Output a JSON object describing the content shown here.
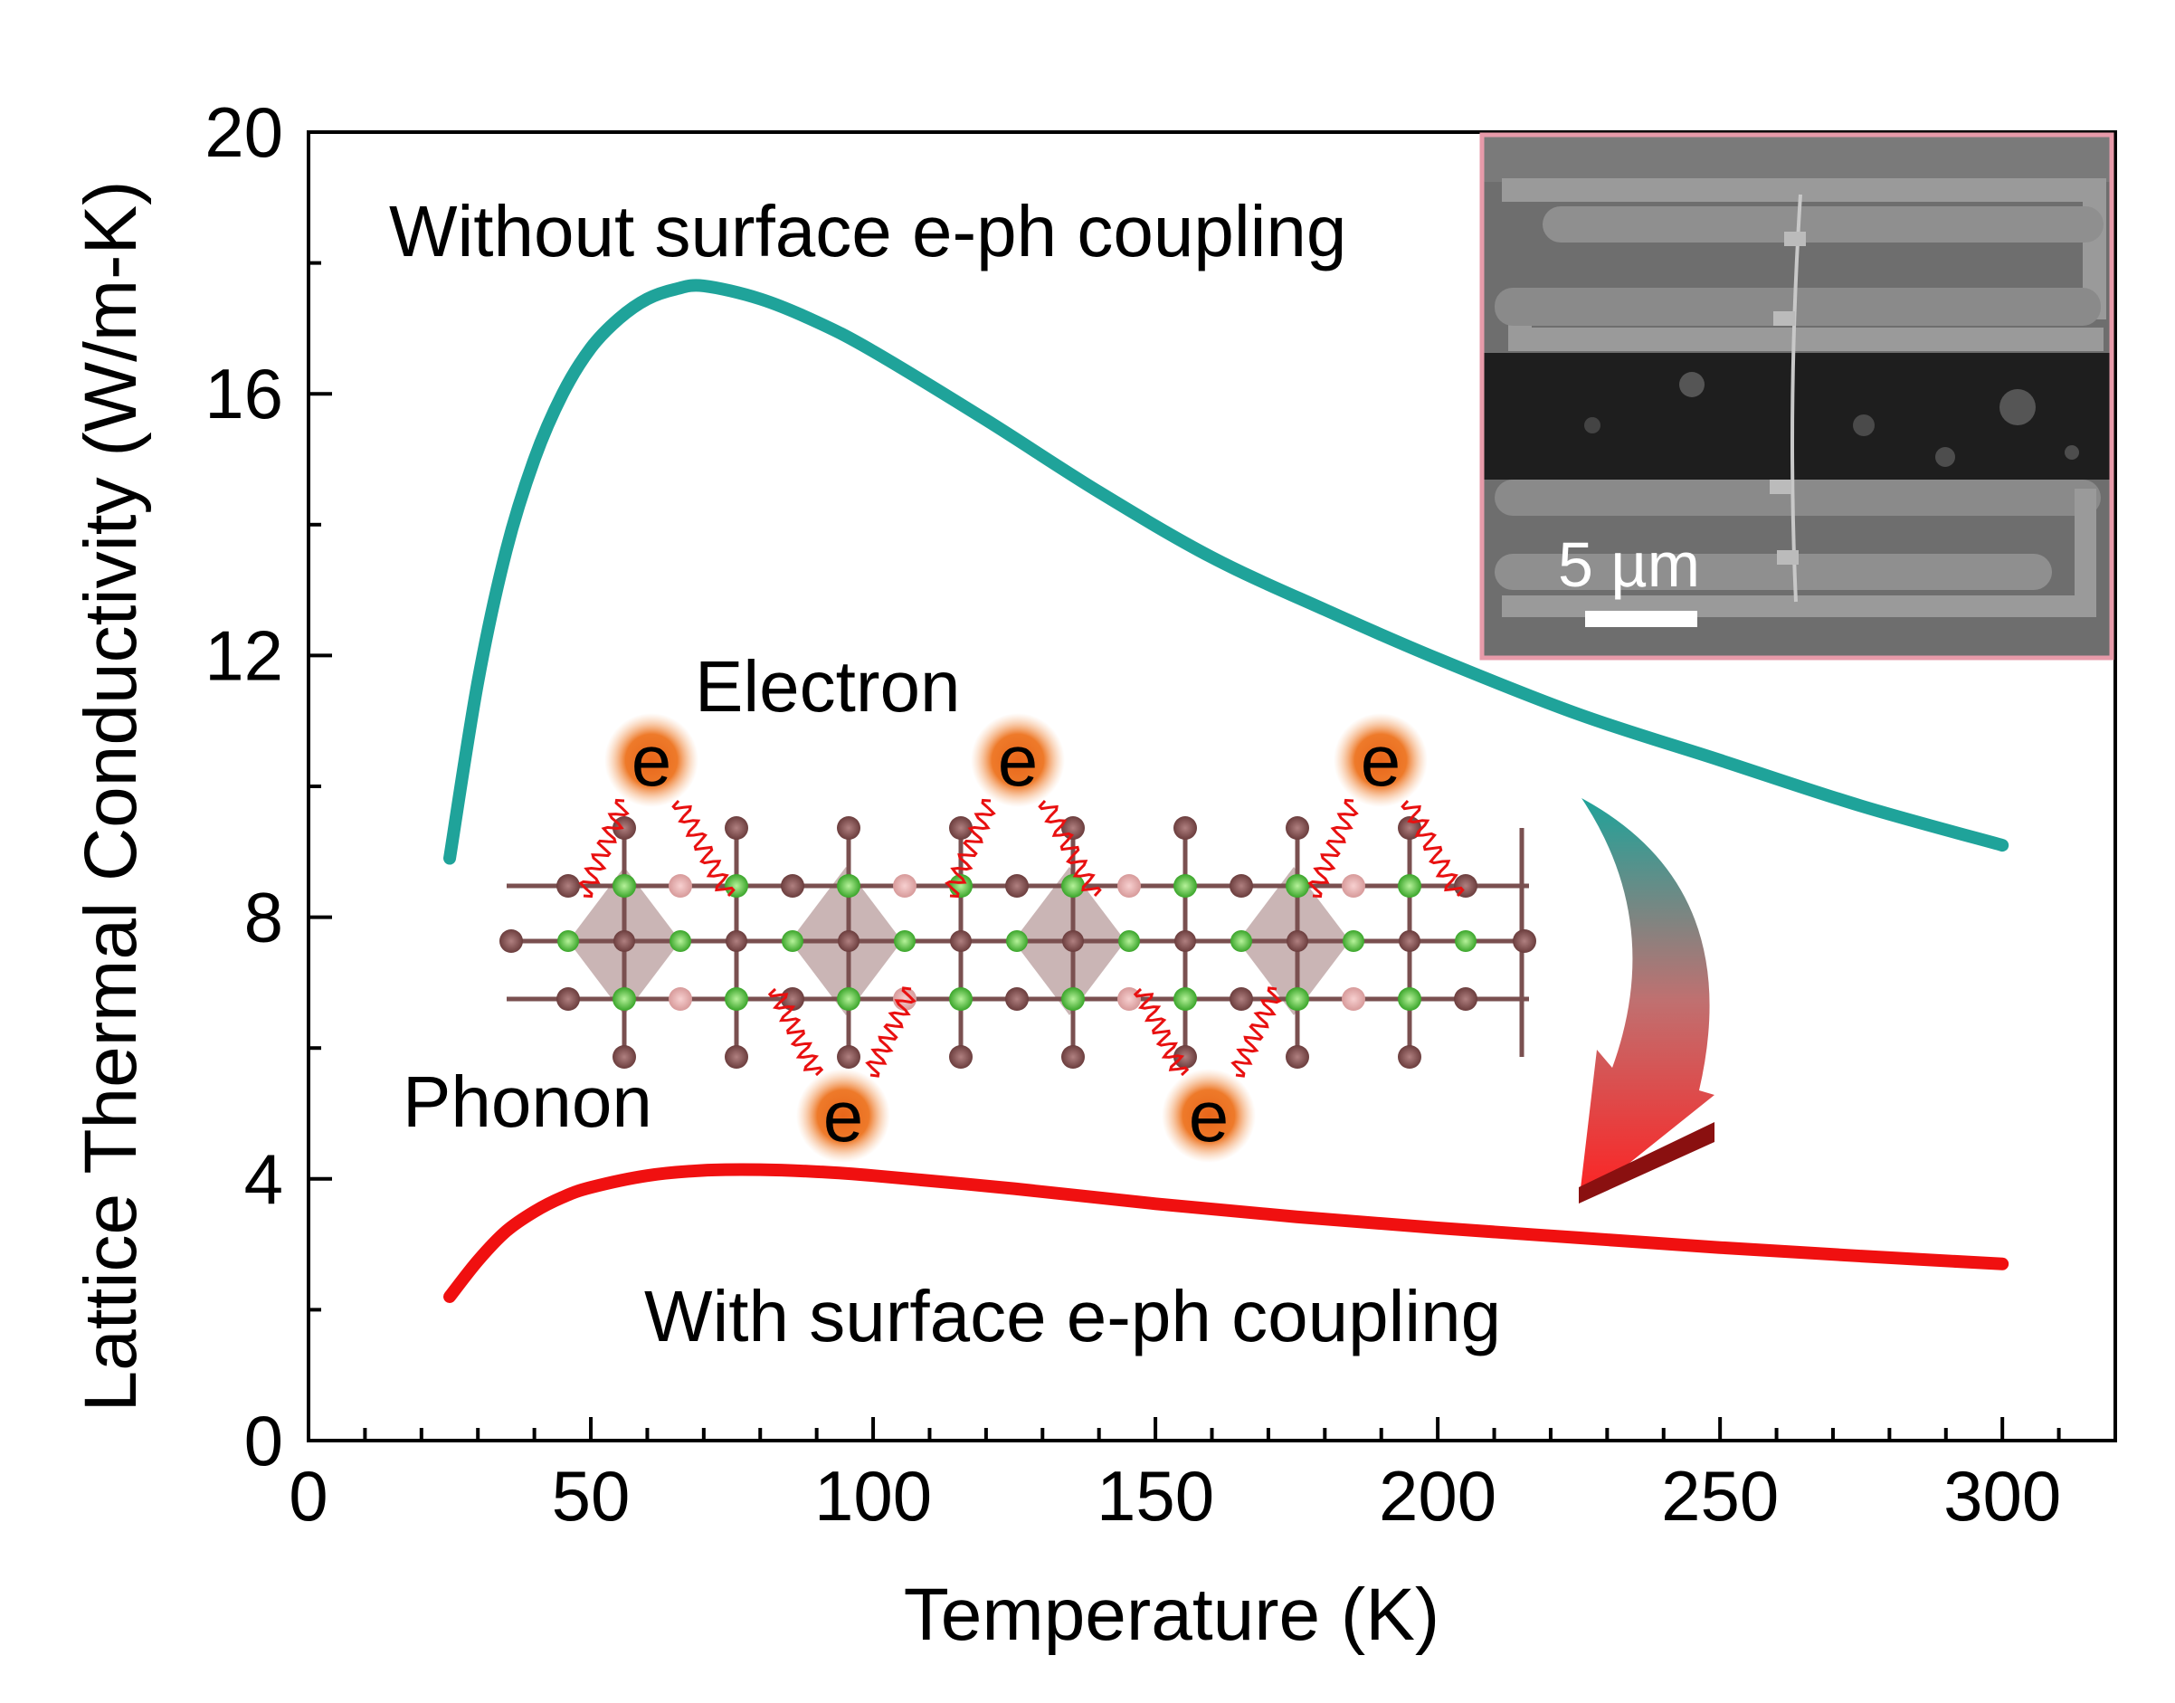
{
  "chart_data": {
    "type": "line",
    "xlabel": "Temperature (K)",
    "ylabel": "Lattice Thermal Conductivity (W/m-K)",
    "xlim": [
      0,
      320
    ],
    "ylim": [
      0,
      20
    ],
    "xticks": [
      "0",
      "50",
      "100",
      "150",
      "200",
      "250",
      "300"
    ],
    "yticks": [
      "0",
      "4",
      "8",
      "12",
      "16",
      "20"
    ],
    "grid": false,
    "series": [
      {
        "name": "Without surface e-ph coupling",
        "color": "#1fa39a",
        "x": [
          25,
          30,
          35,
          40,
          45,
          50,
          55,
          60,
          65,
          70,
          80,
          90,
          100,
          120,
          140,
          160,
          180,
          200,
          225,
          250,
          275,
          300
        ],
        "y": [
          8.9,
          11.6,
          13.6,
          15.0,
          16.0,
          16.7,
          17.15,
          17.45,
          17.6,
          17.65,
          17.45,
          17.1,
          16.65,
          15.6,
          14.5,
          13.5,
          12.7,
          11.95,
          11.1,
          10.4,
          9.7,
          9.1
        ]
      },
      {
        "name": "With surface e-ph coupling",
        "color": "#f01010",
        "x": [
          25,
          30,
          35,
          40,
          45,
          50,
          60,
          70,
          80,
          90,
          100,
          125,
          150,
          175,
          200,
          225,
          250,
          275,
          300
        ],
        "y": [
          2.2,
          2.75,
          3.2,
          3.5,
          3.72,
          3.87,
          4.05,
          4.13,
          4.14,
          4.11,
          4.05,
          3.85,
          3.62,
          3.42,
          3.25,
          3.1,
          2.95,
          2.82,
          2.7
        ]
      }
    ],
    "annotations": {
      "top_curve_label": "Without surface e-ph coupling",
      "bottom_curve_label": "With surface e-ph coupling",
      "electron_label": "Electron",
      "phonon_label": "Phonon",
      "electron_symbol": "e",
      "inset_scale_bar": "5 µm"
    },
    "inset_frame_color": "#e79aa9",
    "arrow_colors": [
      "#1fa39a",
      "#ff2020"
    ]
  }
}
